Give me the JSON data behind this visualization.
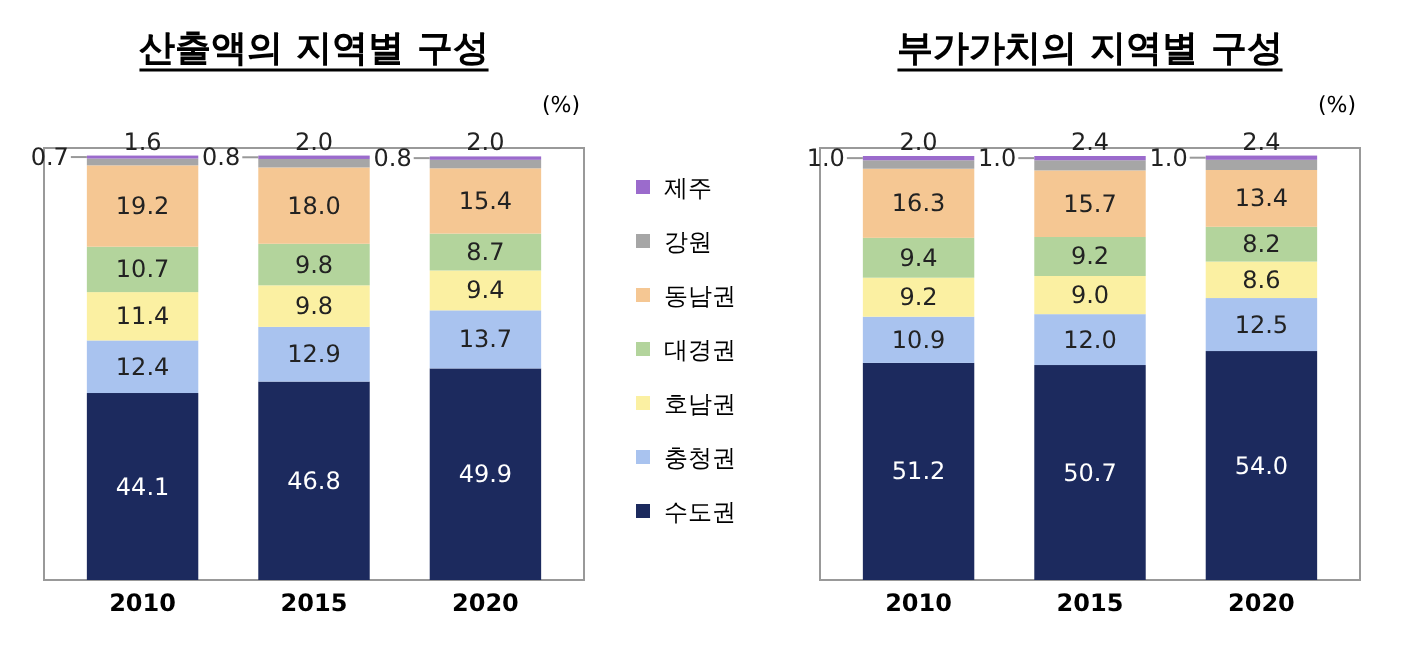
{
  "chart_data": [
    {
      "type": "bar",
      "title": "산출액의 지역별 구성",
      "stacked": true,
      "legend": "right",
      "tick_labels": "x",
      "ylim": [
        0,
        100
      ],
      "annotations": [
        "(%)"
      ],
      "categories": [
        "2010",
        "2015",
        "2020"
      ],
      "series": [
        {
          "name": "수도권",
          "color": "#1c2a5e",
          "values": [
            44.1,
            46.8,
            49.9
          ],
          "value_labels": [
            "44.1",
            "46.8",
            "49.9"
          ]
        },
        {
          "name": "충청권",
          "color": "#a9c3ef",
          "values": [
            12.4,
            12.9,
            13.7
          ],
          "value_labels": [
            "12.4",
            "12.9",
            "13.7"
          ]
        },
        {
          "name": "호남권",
          "color": "#fbf0a2",
          "values": [
            11.4,
            9.8,
            9.4
          ],
          "value_labels": [
            "11.4",
            "9.8",
            "9.4"
          ]
        },
        {
          "name": "대경권",
          "color": "#b3d49c",
          "values": [
            10.7,
            9.8,
            8.7
          ],
          "value_labels": [
            "10.7",
            "9.8",
            "8.7"
          ]
        },
        {
          "name": "동남권",
          "color": "#f5c793",
          "values": [
            19.2,
            18.0,
            15.4
          ],
          "value_labels": [
            "19.2",
            "18.0",
            "15.4"
          ]
        },
        {
          "name": "강원",
          "color": "#a6a6a6",
          "values": [
            1.6,
            2.0,
            2.0
          ],
          "value_labels": [
            "1.6",
            "2.0",
            "2.0"
          ]
        },
        {
          "name": "제주",
          "color": "#9b6bcc",
          "values": [
            0.7,
            0.8,
            0.8
          ],
          "value_labels": [
            "0.7",
            "0.8",
            "0.8"
          ]
        }
      ]
    },
    {
      "type": "bar",
      "title": "부가가치의 지역별 구성",
      "stacked": true,
      "tick_labels": "x",
      "ylim": [
        0,
        100
      ],
      "annotations": [
        "(%)"
      ],
      "categories": [
        "2010",
        "2015",
        "2020"
      ],
      "series": [
        {
          "color": "#1c2a5e",
          "values": [
            51.2,
            50.7,
            54.0
          ],
          "value_labels": [
            "51.2",
            "50.7",
            "54.0"
          ]
        },
        {
          "color": "#a9c3ef",
          "values": [
            10.9,
            12.0,
            12.5
          ],
          "value_labels": [
            "10.9",
            "12.0",
            "12.5"
          ]
        },
        {
          "color": "#fbf0a2",
          "values": [
            9.2,
            9.0,
            8.6
          ],
          "value_labels": [
            "9.2",
            "9.0",
            "8.6"
          ]
        },
        {
          "color": "#b3d49c",
          "values": [
            9.4,
            9.2,
            8.2
          ],
          "value_labels": [
            "9.4",
            "9.2",
            "8.2"
          ]
        },
        {
          "color": "#f5c793",
          "values": [
            16.3,
            15.7,
            13.4
          ],
          "value_labels": [
            "16.3",
            "15.7",
            "13.4"
          ]
        },
        {
          "color": "#a6a6a6",
          "values": [
            2.0,
            2.4,
            2.4
          ],
          "value_labels": [
            "2.0",
            "2.4",
            "2.4"
          ]
        },
        {
          "color": "#9b6bcc",
          "values": [
            1.0,
            1.0,
            1.0
          ],
          "value_labels": [
            "1.0",
            "1.0",
            "1.0"
          ]
        }
      ]
    }
  ]
}
